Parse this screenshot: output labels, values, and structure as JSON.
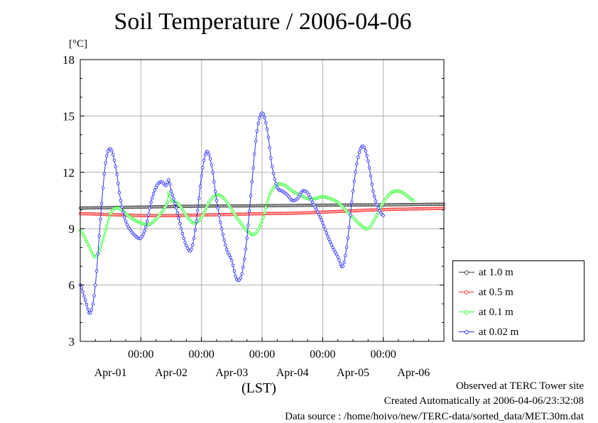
{
  "title": "Soil Temperature / 2006-04-06",
  "unit_label": "[°C]",
  "x_unit_label": "(LST)",
  "footer": {
    "line1": "Observed at TERC Tower site",
    "line2": "Created Automatically at 2006-04-06/23:32:08",
    "line3": "Data source : /home/hoivo/new/TERC-data/sorted_data/MET.30m.dat"
  },
  "chart_data": {
    "type": "line",
    "title": "Soil Temperature / 2006-04-06",
    "xlabel": "(LST)",
    "ylabel": "[°C]",
    "xlim_days": [
      "2006-04-01 00:00",
      "2006-04-07 00:00"
    ],
    "ylim": [
      3,
      18
    ],
    "yticks": [
      3,
      6,
      9,
      12,
      15,
      18
    ],
    "xtick_labels": [
      "00:00",
      "00:00",
      "00:00",
      "00:00",
      "00:00"
    ],
    "day_labels": [
      "Apr-01",
      "Apr-02",
      "Apr-03",
      "Apr-04",
      "Apr-05",
      "Apr-06"
    ],
    "grid": true,
    "legend_position": "right-bottom",
    "series": [
      {
        "name": "at 1.0 m",
        "color": "#404040",
        "points": [
          [
            "2006-04-01 00:00",
            10.1
          ],
          [
            "2006-04-02 00:00",
            10.15
          ],
          [
            "2006-04-03 00:00",
            10.2
          ],
          [
            "2006-04-04 00:00",
            10.22
          ],
          [
            "2006-04-05 00:00",
            10.25
          ],
          [
            "2006-04-06 00:00",
            10.27
          ],
          [
            "2006-04-07 00:00",
            10.3
          ]
        ]
      },
      {
        "name": "at 0.5 m",
        "color": "#ff3030",
        "points": [
          [
            "2006-04-01 00:00",
            9.8
          ],
          [
            "2006-04-01 12:00",
            9.75
          ],
          [
            "2006-04-02 00:00",
            9.7
          ],
          [
            "2006-04-02 12:00",
            9.7
          ],
          [
            "2006-04-03 00:00",
            9.73
          ],
          [
            "2006-04-03 12:00",
            9.76
          ],
          [
            "2006-04-04 00:00",
            9.8
          ],
          [
            "2006-04-04 12:00",
            9.82
          ],
          [
            "2006-04-05 00:00",
            9.88
          ],
          [
            "2006-04-05 12:00",
            9.95
          ],
          [
            "2006-04-06 00:00",
            10.02
          ],
          [
            "2006-04-06 12:00",
            10.05
          ],
          [
            "2006-04-07 00:00",
            10.08
          ]
        ]
      },
      {
        "name": "at 0.1 m",
        "color": "#30ff30",
        "points": [
          [
            "2006-04-01 00:00",
            8.9
          ],
          [
            "2006-04-01 03:00",
            8.2
          ],
          [
            "2006-04-01 06:00",
            7.5
          ],
          [
            "2006-04-01 09:00",
            8.4
          ],
          [
            "2006-04-01 12:00",
            9.8
          ],
          [
            "2006-04-01 15:00",
            10.1
          ],
          [
            "2006-04-01 18:00",
            9.8
          ],
          [
            "2006-04-01 21:00",
            9.5
          ],
          [
            "2006-04-02 00:00",
            9.3
          ],
          [
            "2006-04-02 03:00",
            9.2
          ],
          [
            "2006-04-02 06:00",
            9.5
          ],
          [
            "2006-04-02 09:00",
            10.0
          ],
          [
            "2006-04-02 10:30",
            10.4
          ],
          [
            "2006-04-02 11:00",
            10.9
          ],
          [
            "2006-04-02 12:00",
            10.5
          ],
          [
            "2006-04-02 15:00",
            10.3
          ],
          [
            "2006-04-02 18:00",
            9.7
          ],
          [
            "2006-04-02 21:00",
            9.3
          ],
          [
            "2006-04-03 00:00",
            9.6
          ],
          [
            "2006-04-03 03:00",
            10.4
          ],
          [
            "2006-04-03 06:00",
            10.8
          ],
          [
            "2006-04-03 09:00",
            10.6
          ],
          [
            "2006-04-03 12:00",
            10.0
          ],
          [
            "2006-04-03 15:00",
            9.4
          ],
          [
            "2006-04-03 18:00",
            8.9
          ],
          [
            "2006-04-03 21:00",
            8.7
          ],
          [
            "2006-04-04 00:00",
            9.4
          ],
          [
            "2006-04-04 03:00",
            10.8
          ],
          [
            "2006-04-04 06:00",
            11.35
          ],
          [
            "2006-04-04 09:00",
            11.3
          ],
          [
            "2006-04-04 12:00",
            11.0
          ],
          [
            "2006-04-04 15:00",
            10.8
          ],
          [
            "2006-04-04 18:00",
            10.6
          ],
          [
            "2006-04-04 21:00",
            10.6
          ],
          [
            "2006-04-05 00:00",
            10.7
          ],
          [
            "2006-04-05 03:00",
            10.6
          ],
          [
            "2006-04-05 06:00",
            10.4
          ],
          [
            "2006-04-05 09:00",
            10.0
          ],
          [
            "2006-04-05 12:00",
            9.6
          ],
          [
            "2006-04-05 15:00",
            9.2
          ],
          [
            "2006-04-05 18:00",
            9.0
          ],
          [
            "2006-04-05 21:00",
            9.6
          ],
          [
            "2006-04-06 00:00",
            10.4
          ],
          [
            "2006-04-06 03:00",
            10.9
          ],
          [
            "2006-04-06 06:00",
            11.0
          ],
          [
            "2006-04-06 09:00",
            10.8
          ],
          [
            "2006-04-06 12:00",
            10.5
          ]
        ]
      },
      {
        "name": "at 0.02 m",
        "color": "#3030ff",
        "points": [
          [
            "2006-04-01 00:00",
            6.0
          ],
          [
            "2006-04-01 02:00",
            5.2
          ],
          [
            "2006-04-01 04:00",
            4.5
          ],
          [
            "2006-04-01 06:00",
            6.0
          ],
          [
            "2006-04-01 08:00",
            9.5
          ],
          [
            "2006-04-01 10:00",
            12.5
          ],
          [
            "2006-04-01 12:00",
            13.25
          ],
          [
            "2006-04-01 14:00",
            12.3
          ],
          [
            "2006-04-01 16:00",
            10.5
          ],
          [
            "2006-04-01 18:00",
            9.4
          ],
          [
            "2006-04-01 20:00",
            8.9
          ],
          [
            "2006-04-01 22:00",
            8.6
          ],
          [
            "2006-04-02 00:00",
            8.5
          ],
          [
            "2006-04-02 02:00",
            9.1
          ],
          [
            "2006-04-02 04:00",
            10.4
          ],
          [
            "2006-04-02 06:00",
            11.2
          ],
          [
            "2006-04-02 08:00",
            11.5
          ],
          [
            "2006-04-02 10:00",
            11.3
          ],
          [
            "2006-04-02 11:00",
            11.6
          ],
          [
            "2006-04-02 12:00",
            11.0
          ],
          [
            "2006-04-02 14:00",
            10.1
          ],
          [
            "2006-04-02 16:00",
            9.0
          ],
          [
            "2006-04-02 18:00",
            8.1
          ],
          [
            "2006-04-02 20:00",
            7.9
          ],
          [
            "2006-04-02 22:00",
            9.4
          ],
          [
            "2006-04-03 00:00",
            11.8
          ],
          [
            "2006-04-03 02:00",
            13.1
          ],
          [
            "2006-04-03 04:00",
            12.4
          ],
          [
            "2006-04-03 06:00",
            10.5
          ],
          [
            "2006-04-03 08:00",
            9.0
          ],
          [
            "2006-04-03 10:00",
            7.9
          ],
          [
            "2006-04-03 12:00",
            7.3
          ],
          [
            "2006-04-03 14:00",
            6.3
          ],
          [
            "2006-04-03 16:00",
            6.6
          ],
          [
            "2006-04-03 18:00",
            8.5
          ],
          [
            "2006-04-03 20:00",
            11.5
          ],
          [
            "2006-04-03 22:00",
            14.2
          ],
          [
            "2006-04-04 00:00",
            15.15
          ],
          [
            "2006-04-04 02:00",
            14.3
          ],
          [
            "2006-04-04 04:00",
            12.3
          ],
          [
            "2006-04-04 06:00",
            11.2
          ],
          [
            "2006-04-04 08:00",
            11.0
          ],
          [
            "2006-04-04 10:00",
            10.8
          ],
          [
            "2006-04-04 12:00",
            10.5
          ],
          [
            "2006-04-04 14:00",
            10.6
          ],
          [
            "2006-04-04 16:00",
            11.0
          ],
          [
            "2006-04-04 18:00",
            10.9
          ],
          [
            "2006-04-04 20:00",
            10.4
          ],
          [
            "2006-04-04 22:00",
            9.9
          ],
          [
            "2006-04-05 00:00",
            9.3
          ],
          [
            "2006-04-05 02:00",
            8.6
          ],
          [
            "2006-04-05 04:00",
            8.0
          ],
          [
            "2006-04-05 06:00",
            7.5
          ],
          [
            "2006-04-05 08:00",
            7.0
          ],
          [
            "2006-04-05 10:00",
            8.5
          ],
          [
            "2006-04-05 12:00",
            11.0
          ],
          [
            "2006-04-05 14:00",
            12.8
          ],
          [
            "2006-04-05 16:00",
            13.4
          ],
          [
            "2006-04-05 18:00",
            12.6
          ],
          [
            "2006-04-05 20:00",
            11.0
          ],
          [
            "2006-04-05 22:00",
            10.1
          ],
          [
            "2006-04-06 00:00",
            9.7
          ]
        ]
      }
    ]
  }
}
